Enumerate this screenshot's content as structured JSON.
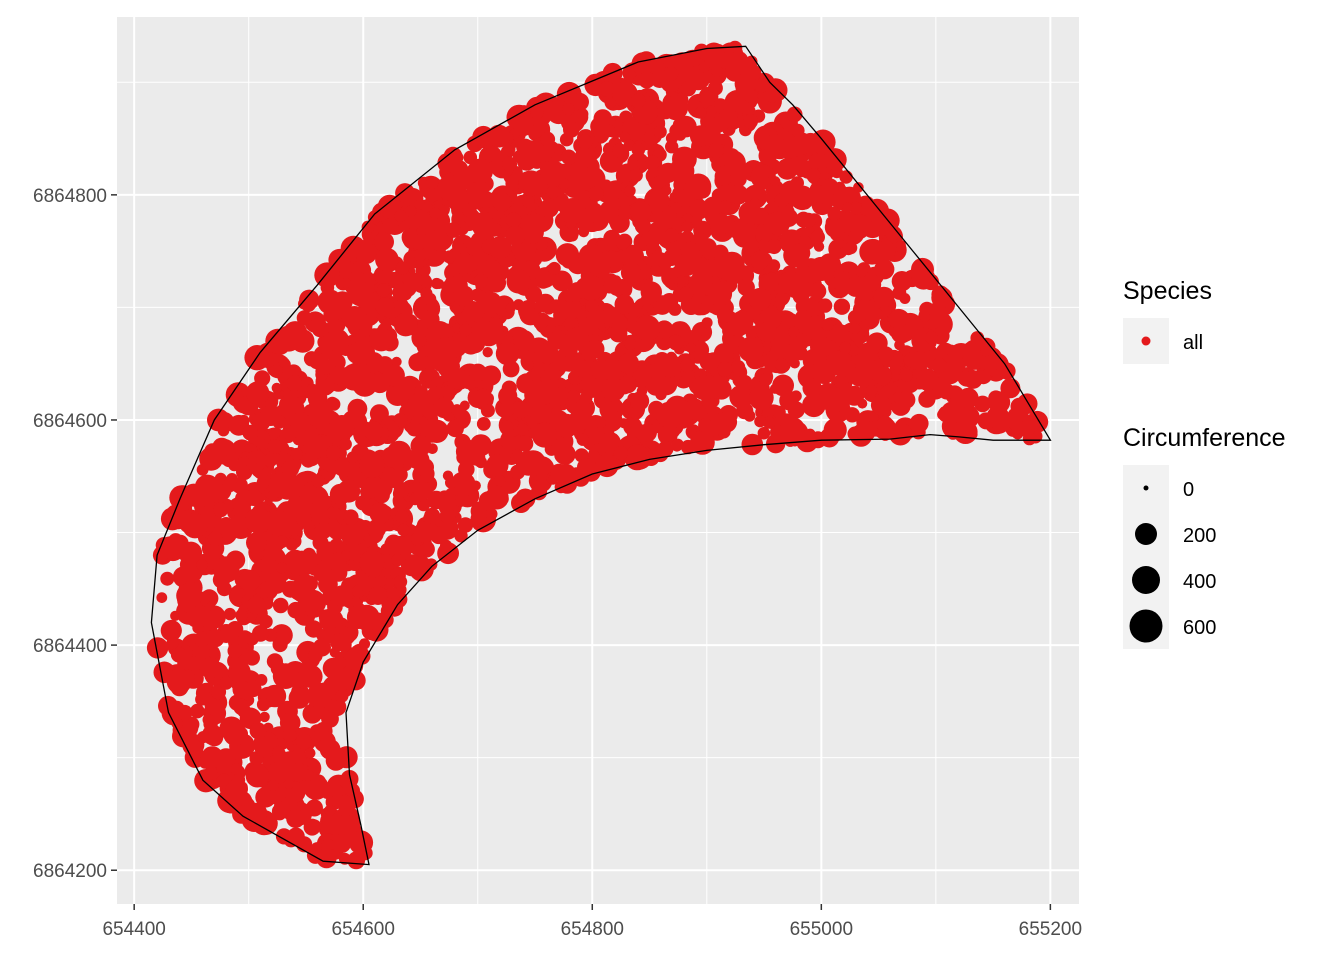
{
  "chart_data": {
    "type": "scatter",
    "title": "",
    "xlabel": "",
    "ylabel": "",
    "xlim": [
      654385,
      655225
    ],
    "ylim": [
      6864170,
      6864958
    ],
    "x_ticks": [
      654400,
      654600,
      654800,
      655000,
      655200
    ],
    "x_tick_labels": [
      "654400",
      "654600",
      "654800",
      "655000",
      "655200"
    ],
    "y_ticks": [
      6864200,
      6864400,
      6864600,
      6864800
    ],
    "y_tick_labels": [
      "6864200",
      "6864400",
      "6864600",
      "6864800"
    ],
    "grid": true,
    "panel_background": "#ebebeb",
    "point_color": "#e41a1c",
    "outline_color": "#000000",
    "legend": {
      "placement": "right",
      "species": {
        "title": "Species",
        "entries": [
          {
            "label": "all",
            "color": "#e41a1c"
          }
        ]
      },
      "circumference": {
        "title": "Circumference",
        "entries": [
          {
            "label": "0",
            "value": 0
          },
          {
            "label": "200",
            "value": 200
          },
          {
            "label": "400",
            "value": 400
          },
          {
            "label": "600",
            "value": 600
          }
        ]
      }
    },
    "boundary_polygon": [
      [
        654934,
        6864932
      ],
      [
        654955,
        6864900
      ],
      [
        654975,
        6864880
      ],
      [
        655000,
        6864850
      ],
      [
        655040,
        6864800
      ],
      [
        655080,
        6864750
      ],
      [
        655120,
        6864700
      ],
      [
        655160,
        6864650
      ],
      [
        655200,
        6864582
      ],
      [
        655150,
        6864582
      ],
      [
        655120,
        6864585
      ],
      [
        655095,
        6864587
      ],
      [
        655060,
        6864583
      ],
      [
        655000,
        6864582
      ],
      [
        654950,
        6864578
      ],
      [
        654900,
        6864573
      ],
      [
        654850,
        6864565
      ],
      [
        654800,
        6864552
      ],
      [
        654750,
        6864530
      ],
      [
        654700,
        6864502
      ],
      [
        654660,
        6864470
      ],
      [
        654630,
        6864436
      ],
      [
        654600,
        6864385
      ],
      [
        654585,
        6864340
      ],
      [
        654588,
        6864285
      ],
      [
        654598,
        6864240
      ],
      [
        654605,
        6864205
      ],
      [
        654565,
        6864208
      ],
      [
        654495,
        6864248
      ],
      [
        654460,
        6864280
      ],
      [
        654430,
        6864340
      ],
      [
        654415,
        6864420
      ],
      [
        654420,
        6864480
      ],
      [
        654440,
        6864530
      ],
      [
        654470,
        6864600
      ],
      [
        654510,
        6864660
      ],
      [
        654560,
        6864720
      ],
      [
        654610,
        6864783
      ],
      [
        654680,
        6864840
      ],
      [
        654750,
        6864880
      ],
      [
        654840,
        6864918
      ],
      [
        654900,
        6864930
      ],
      [
        654934,
        6864932
      ]
    ]
  }
}
